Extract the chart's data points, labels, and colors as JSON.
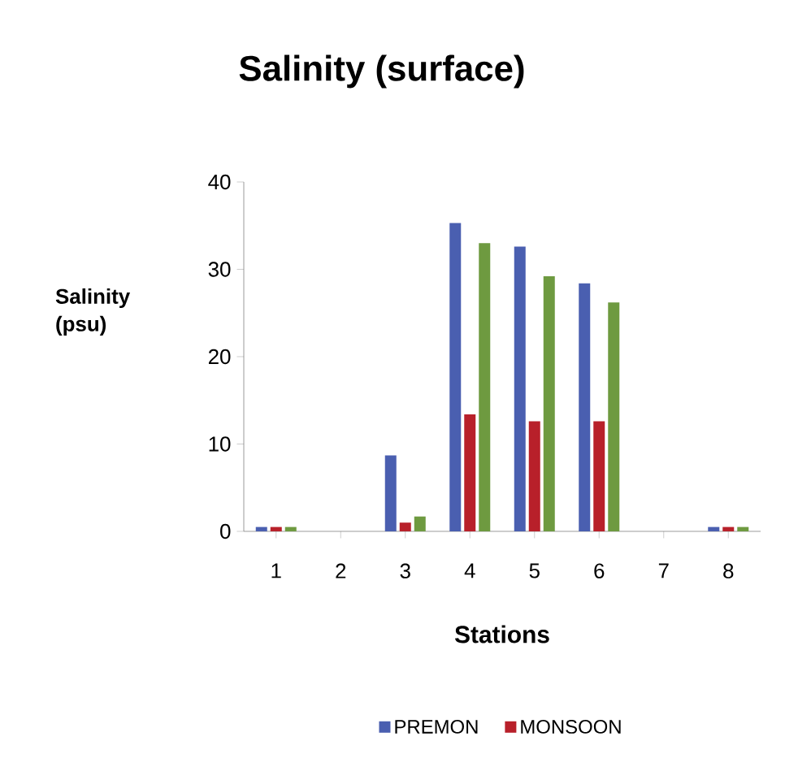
{
  "chart_data": {
    "type": "bar",
    "title": "Salinity (surface)",
    "xlabel": "Stations",
    "ylabel": "Salinity (psu)",
    "categories": [
      "1",
      "2",
      "3",
      "4",
      "5",
      "6",
      "7",
      "8"
    ],
    "series": [
      {
        "name": "PREMON",
        "color": "#4a5fb0",
        "values": [
          0.5,
          0,
          8.7,
          35.3,
          32.6,
          28.4,
          0,
          0.5
        ]
      },
      {
        "name": "MONSOON",
        "color": "#b8202a",
        "values": [
          0.5,
          0,
          1,
          13.4,
          12.6,
          12.6,
          0,
          0.5
        ]
      },
      {
        "color": "#6e9a40",
        "values": [
          0.5,
          0,
          1.7,
          33,
          29.2,
          26.2,
          0,
          0.5
        ]
      }
    ],
    "ylim": [
      0,
      40
    ],
    "yticks": [
      0,
      10,
      20,
      30,
      40
    ],
    "grid": false,
    "legend": "bottom"
  }
}
